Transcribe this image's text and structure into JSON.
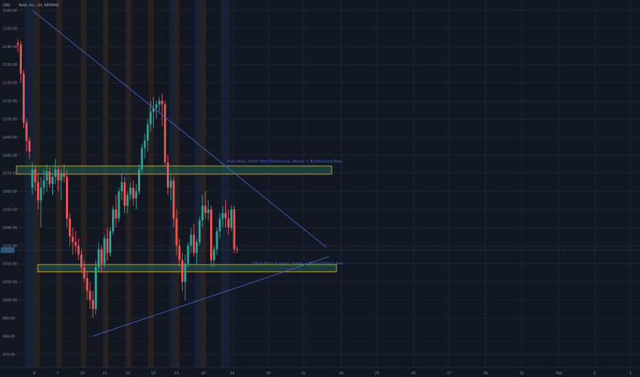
{
  "header": {
    "currency": "USD",
    "symbol_line": "Tesla, Inc., 1h, NASDAQ"
  },
  "colors": {
    "background": "#131722",
    "grid": "#1f2533",
    "up": "#26a69a",
    "down": "#ef5350",
    "zone_border": "#c8a52a",
    "zone_fill": "#1f5f5a",
    "trendline": "#3d63c9",
    "annotation": "#3d6fd6",
    "premarket": "#3a2a1c",
    "afterhours": "#1c2a45",
    "axis_text": "#8a8f9c",
    "price_label": "#2c5a7a"
  },
  "annotations": {
    "resistance": "Pivot Area, Short Term Resistance, Above = Bullish/Long Bias",
    "support": "Short Term Support, Below = Bearish/Short Bias"
  },
  "chart_data": {
    "type": "candlestick",
    "ylim": [
      965,
      1160
    ],
    "y_ticks": [
      970,
      980,
      990,
      1000,
      1010,
      1020,
      1030,
      1040,
      1050,
      1060,
      1070,
      1080,
      1090,
      1100,
      1110,
      1120,
      1130,
      1140,
      1150,
      1160
    ],
    "y_tick_labels": [
      "970.00",
      "980.00",
      "990.00",
      "1000.00",
      "1010.00",
      "1020.00",
      "1030.00",
      "1040.00",
      "1050.00",
      "1060.00",
      "1070.00",
      "1080.00",
      "1090.00",
      "1100.00",
      "1110.00",
      "1120.00",
      "1130.00",
      "1140.00",
      "1150.00",
      "1160.00"
    ],
    "x_labels": [
      "6",
      "7",
      "10",
      "11",
      "12",
      "13",
      "14",
      "18",
      "19",
      "20",
      "21",
      "24",
      "25",
      "26",
      "27",
      "28",
      "31",
      "Feb",
      "2",
      "3"
    ],
    "last_price": 1027.5,
    "zones": [
      {
        "name": "resistance",
        "low": 1069.5,
        "high": 1074.0
      },
      {
        "name": "support",
        "low": 1015.5,
        "high": 1019.5
      }
    ],
    "trendlines": [
      {
        "name": "descending",
        "from": {
          "bar": 5,
          "price": 1160
        },
        "to": {
          "bar": 107,
          "price": 1029
        }
      },
      {
        "name": "ascending",
        "from": {
          "bar": 26,
          "price": 980
        },
        "to": {
          "bar": 108,
          "price": 1024
        }
      }
    ],
    "candles": [
      [
        1142,
        1144,
        1137,
        1141
      ],
      [
        1141,
        1143,
        1120,
        1125
      ],
      [
        1125,
        1127,
        1095,
        1098
      ],
      [
        1098,
        1100,
        1082,
        1088
      ],
      [
        1088,
        1090,
        1078,
        1082
      ],
      [
        1062,
        1076,
        1058,
        1072
      ],
      [
        1072,
        1075,
        1060,
        1065
      ],
      [
        1065,
        1070,
        1050,
        1055
      ],
      [
        1055,
        1068,
        1040,
        1062
      ],
      [
        1062,
        1072,
        1058,
        1066
      ],
      [
        1066,
        1075,
        1060,
        1071
      ],
      [
        1071,
        1073,
        1062,
        1064
      ],
      [
        1064,
        1070,
        1058,
        1068
      ],
      [
        1068,
        1078,
        1064,
        1072
      ],
      [
        1072,
        1074,
        1060,
        1066
      ],
      [
        1066,
        1072,
        1055,
        1070
      ],
      [
        1070,
        1075,
        1065,
        1068
      ],
      [
        1068,
        1072,
        1040,
        1045
      ],
      [
        1045,
        1048,
        1030,
        1035
      ],
      [
        1035,
        1040,
        1025,
        1032
      ],
      [
        1032,
        1038,
        1026,
        1030
      ],
      [
        1030,
        1034,
        1022,
        1025
      ],
      [
        1025,
        1028,
        1015,
        1018
      ],
      [
        1018,
        1022,
        1010,
        1012
      ],
      [
        1012,
        1016,
        1000,
        1005
      ],
      [
        1005,
        1010,
        995,
        1000
      ],
      [
        1000,
        1005,
        990,
        995
      ],
      [
        995,
        1022,
        992,
        1018
      ],
      [
        1018,
        1032,
        1015,
        1028
      ],
      [
        1028,
        1030,
        1015,
        1020
      ],
      [
        1020,
        1036,
        1018,
        1034
      ],
      [
        1034,
        1040,
        1022,
        1026
      ],
      [
        1026,
        1040,
        1024,
        1038
      ],
      [
        1038,
        1052,
        1036,
        1050
      ],
      [
        1050,
        1058,
        1040,
        1045
      ],
      [
        1045,
        1062,
        1043,
        1060
      ],
      [
        1060,
        1070,
        1055,
        1065
      ],
      [
        1065,
        1068,
        1048,
        1052
      ],
      [
        1052,
        1060,
        1048,
        1058
      ],
      [
        1058,
        1065,
        1055,
        1062
      ],
      [
        1062,
        1066,
        1052,
        1056
      ],
      [
        1056,
        1064,
        1050,
        1060
      ],
      [
        1060,
        1075,
        1058,
        1072
      ],
      [
        1072,
        1086,
        1070,
        1084
      ],
      [
        1084,
        1092,
        1078,
        1088
      ],
      [
        1088,
        1100,
        1082,
        1097
      ],
      [
        1097,
        1110,
        1093,
        1104
      ],
      [
        1104,
        1112,
        1095,
        1106
      ],
      [
        1106,
        1110,
        1100,
        1108
      ],
      [
        1108,
        1112,
        1104,
        1110
      ],
      [
        1110,
        1114,
        1096,
        1108
      ],
      [
        1108,
        1110,
        1074,
        1076
      ],
      [
        1076,
        1080,
        1058,
        1062
      ],
      [
        1062,
        1070,
        1055,
        1066
      ],
      [
        1066,
        1068,
        1040,
        1045
      ],
      [
        1045,
        1050,
        1025,
        1030
      ],
      [
        1030,
        1034,
        1018,
        1022
      ],
      [
        1022,
        1026,
        1005,
        1010
      ],
      [
        1010,
        1025,
        1000,
        1020
      ],
      [
        1020,
        1032,
        1018,
        1030
      ],
      [
        1030,
        1040,
        1026,
        1036
      ],
      [
        1036,
        1042,
        1024,
        1026
      ],
      [
        1026,
        1034,
        1020,
        1032
      ],
      [
        1032,
        1046,
        1030,
        1044
      ],
      [
        1044,
        1058,
        1040,
        1052
      ],
      [
        1052,
        1060,
        1045,
        1048
      ],
      [
        1048,
        1055,
        1044,
        1050
      ],
      [
        1050,
        1052,
        1018,
        1022
      ],
      [
        1022,
        1030,
        1018,
        1028
      ],
      [
        1028,
        1040,
        1025,
        1038
      ],
      [
        1038,
        1048,
        1034,
        1045
      ],
      [
        1045,
        1052,
        1040,
        1048
      ],
      [
        1048,
        1055,
        1040,
        1045
      ],
      [
        1045,
        1050,
        1036,
        1040
      ],
      [
        1040,
        1052,
        1038,
        1050
      ],
      [
        1050,
        1052,
        1026,
        1028
      ],
      [
        1028,
        1030,
        1026,
        1027.5
      ]
    ]
  }
}
